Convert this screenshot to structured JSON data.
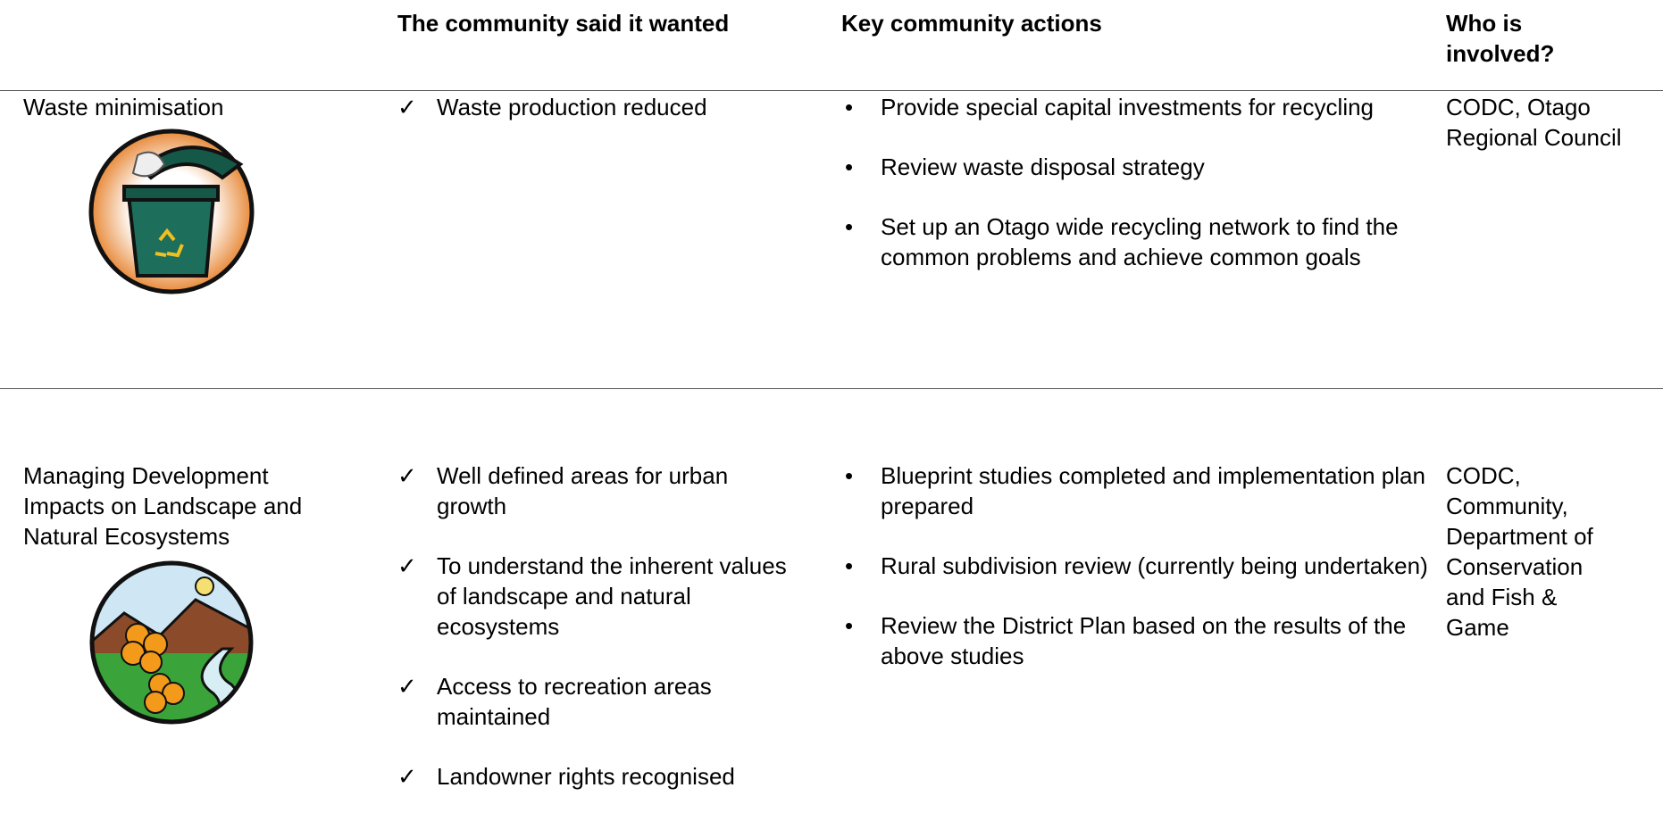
{
  "header": {
    "columns": [
      "The community said it wanted",
      "Key community actions",
      "Who is involved?"
    ]
  },
  "rows": [
    {
      "topic": "Waste minimisation",
      "wanted": [
        "Waste production reduced"
      ],
      "actions": [
        "Provide special capital investments for recycling",
        "Review waste disposal strategy",
        "Set up an Otago wide recycling network to find the common problems and achieve common goals"
      ],
      "who": "CODC, Otago Regional Council"
    },
    {
      "topic": "Managing Development Impacts on Landscape and Natural Ecosystems",
      "wanted": [
        "Well defined areas for urban growth",
        "To understand the inherent values of landscape and natural ecosystems",
        "Access to recreation areas maintained",
        "Landowner rights recognised"
      ],
      "actions": [
        "Blueprint studies completed and implementation plan prepared",
        "Rural subdivision review (currently being undertaken)",
        "Review the District Plan based on the results of the above studies"
      ],
      "who": "CODC, Community, Department of Conservation and Fish & Game"
    }
  ]
}
